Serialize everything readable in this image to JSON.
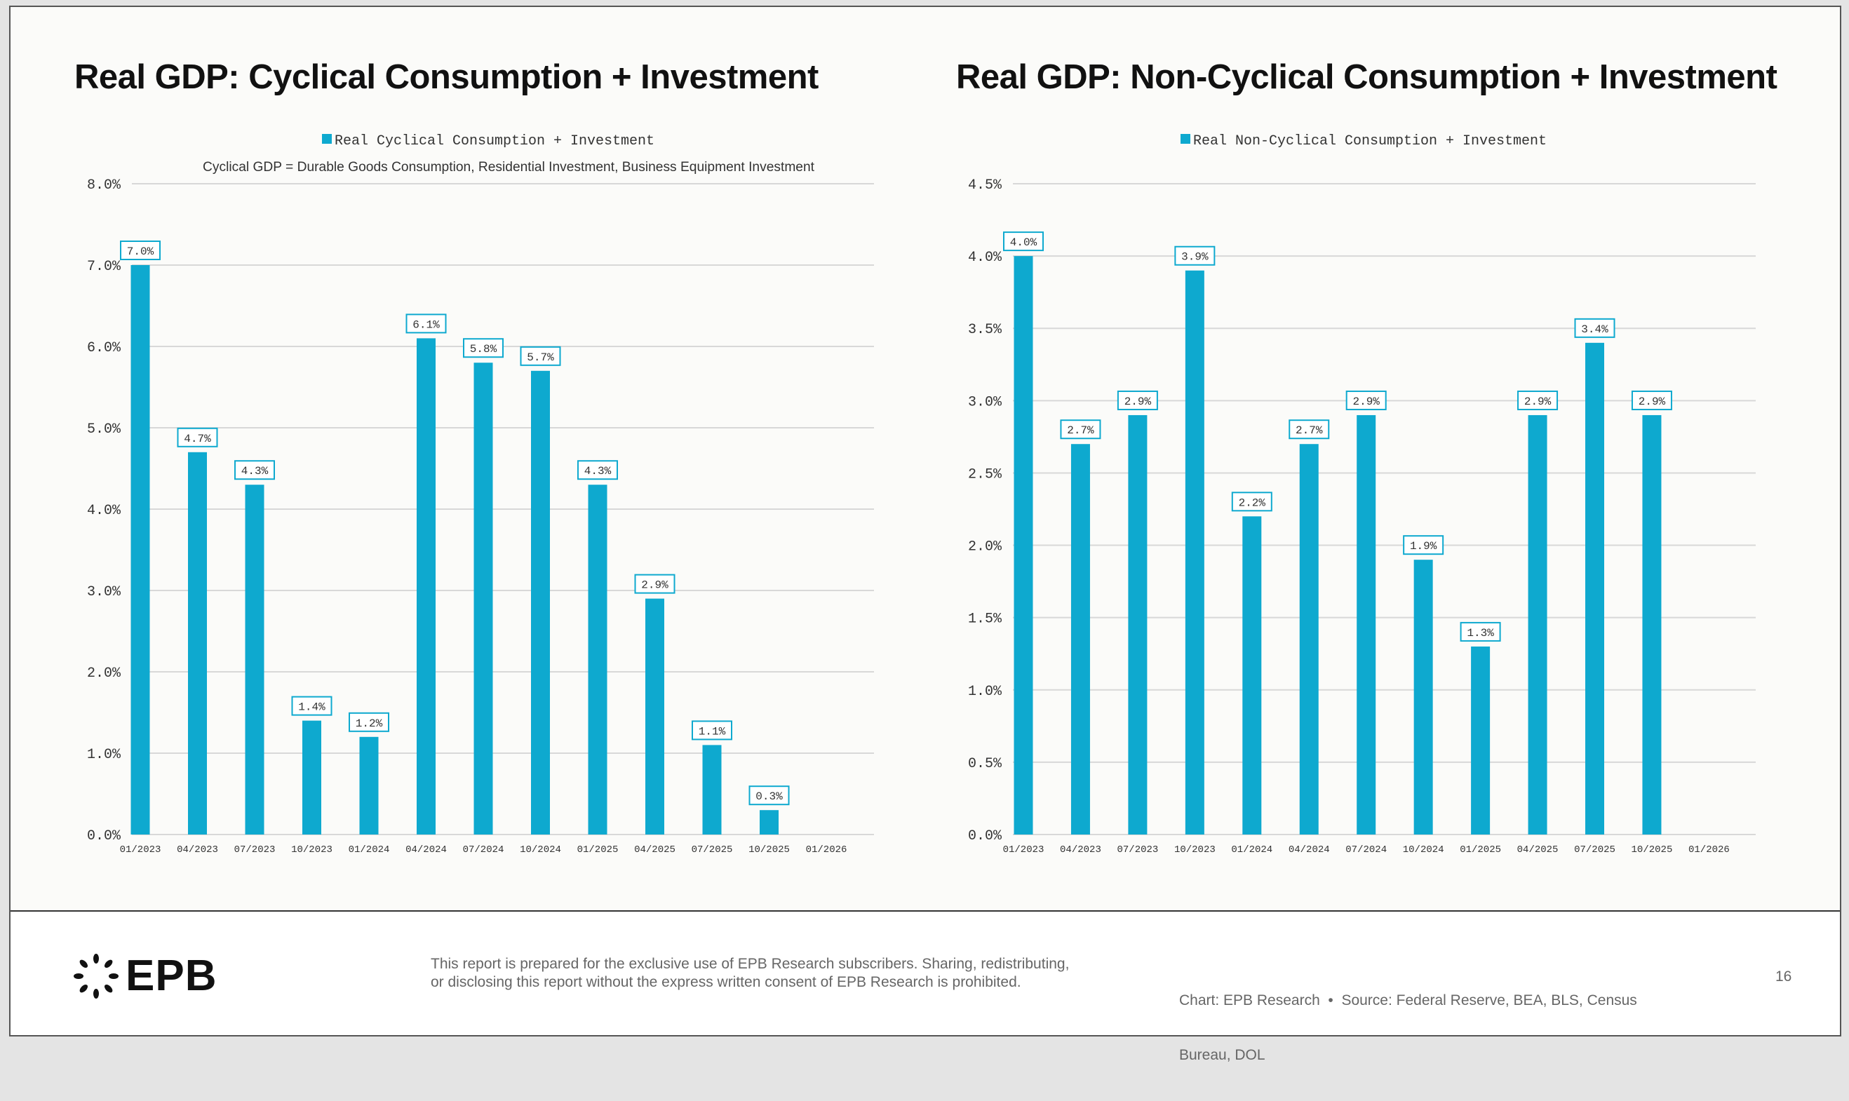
{
  "colors": {
    "bar": "#0ea9cf",
    "grid": "#d8d8d8",
    "text": "#333333"
  },
  "chart_data": [
    {
      "type": "bar",
      "title": "Real GDP: Cyclical Consumption + Investment",
      "legend": "Real Cyclical Consumption + Investment",
      "subtitle": "Cyclical GDP = Durable Goods Consumption, Residential Investment, Business Equipment Investment",
      "categories": [
        "01/2023",
        "04/2023",
        "07/2023",
        "10/2023",
        "01/2024",
        "04/2024",
        "07/2024",
        "10/2024",
        "01/2025",
        "04/2025",
        "07/2025",
        "10/2025",
        "01/2026"
      ],
      "values": [
        7.0,
        4.7,
        4.3,
        1.4,
        1.2,
        6.1,
        5.8,
        5.7,
        4.3,
        2.9,
        1.1,
        0.3,
        null
      ],
      "labels": [
        "7.0%",
        "4.7%",
        "4.3%",
        "1.4%",
        "1.2%",
        "6.1%",
        "5.8%",
        "5.7%",
        "4.3%",
        "2.9%",
        "1.1%",
        "0.3%",
        null
      ],
      "yticks": [
        "0.0%",
        "1.0%",
        "2.0%",
        "3.0%",
        "4.0%",
        "5.0%",
        "6.0%",
        "7.0%",
        "8.0%"
      ],
      "ylim": [
        0,
        8
      ],
      "ystep": 1,
      "grid": true,
      "legend_position": "top-center"
    },
    {
      "type": "bar",
      "title": "Real GDP: Non-Cyclical Consumption + Investment",
      "legend": "Real Non-Cyclical Consumption + Investment",
      "categories": [
        "01/2023",
        "04/2023",
        "07/2023",
        "10/2023",
        "01/2024",
        "04/2024",
        "07/2024",
        "10/2024",
        "01/2025",
        "04/2025",
        "07/2025",
        "10/2025",
        "01/2026"
      ],
      "values": [
        4.0,
        2.7,
        2.9,
        3.9,
        2.2,
        2.7,
        2.9,
        1.9,
        1.3,
        2.9,
        3.4,
        2.9,
        null
      ],
      "labels": [
        "4.0%",
        "2.7%",
        "2.9%",
        "3.9%",
        "2.2%",
        "2.7%",
        "2.9%",
        "1.9%",
        "1.3%",
        "2.9%",
        "3.4%",
        "2.9%",
        null
      ],
      "yticks": [
        "0.0%",
        "0.5%",
        "1.0%",
        "1.5%",
        "2.0%",
        "2.5%",
        "3.0%",
        "3.5%",
        "4.0%",
        "4.5%"
      ],
      "ylim": [
        0,
        4.5
      ],
      "ystep": 0.5,
      "grid": true,
      "legend_position": "top-center"
    }
  ],
  "footer": {
    "logo": "EPB",
    "disclaimer_line1": "This report is prepared for the exclusive use of EPB Research subscribers. Sharing, redistributing,",
    "disclaimer_line2": "or disclosing this report without the express written consent of EPB Research is prohibited.",
    "source_line1": "Chart: EPB Research  •  Source: Federal Reserve, BEA, BLS, Census",
    "source_line2": "Bureau, DOL",
    "page_number": "16"
  }
}
